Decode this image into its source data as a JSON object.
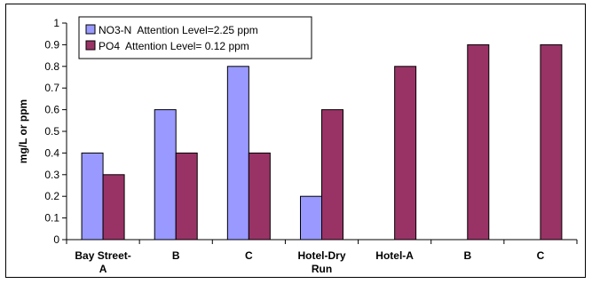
{
  "chart_data": {
    "type": "bar",
    "title": "",
    "xlabel": "",
    "ylabel": "mg/L or ppm",
    "ylim": [
      0,
      1
    ],
    "yticks": [
      0,
      0.1,
      0.2,
      0.3,
      0.4,
      0.5,
      0.6,
      0.7,
      0.8,
      0.9,
      1
    ],
    "ytick_labels": [
      "0",
      "0.1",
      "0.2",
      "0.3",
      "0.4",
      "0.5",
      "0.6",
      "0.7",
      "0.8",
      "0.9",
      "1"
    ],
    "grid": false,
    "legend_position": "top-left",
    "categories": [
      "Bay Street-A",
      "B",
      "C",
      "Hotel-Dry Run",
      "Hotel-A",
      "B",
      "C"
    ],
    "category_lines": [
      [
        "Bay Street-",
        "A"
      ],
      [
        "B"
      ],
      [
        "C"
      ],
      [
        "Hotel-Dry",
        "Run"
      ],
      [
        "Hotel-A"
      ],
      [
        "B"
      ],
      [
        "C"
      ]
    ],
    "series": [
      {
        "name": "NO3-N  Attention Level=2.25 ppm",
        "color": "#9999ff",
        "values": [
          0.4,
          0.6,
          0.8,
          0.2,
          0,
          0,
          0
        ]
      },
      {
        "name": "PO4  Attention Level= 0.12 ppm",
        "color": "#993366",
        "values": [
          0.3,
          0.4,
          0.4,
          0.6,
          0.8,
          0.9,
          0.9
        ]
      }
    ]
  }
}
